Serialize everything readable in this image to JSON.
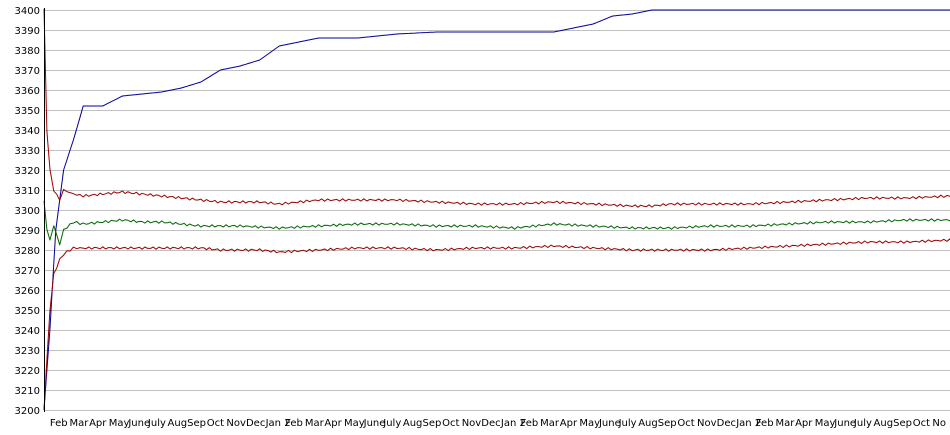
{
  "chart_data": {
    "type": "line",
    "title": "",
    "xlabel": "",
    "ylabel": "",
    "ylim": [
      3200,
      3400
    ],
    "yticks": [
      3200,
      3210,
      3220,
      3230,
      3240,
      3250,
      3260,
      3270,
      3280,
      3290,
      3300,
      3310,
      3320,
      3330,
      3340,
      3350,
      3360,
      3370,
      3380,
      3390,
      3400
    ],
    "grid": "horizontal",
    "legend": "none",
    "x_tick_labels": [
      "Feb",
      "Mar",
      "Apr",
      "May",
      "June",
      "July",
      "Aug",
      "Sep",
      "Oct",
      "Nov",
      "Dec",
      "Jan 2",
      "Feb",
      "Mar",
      "Apr",
      "May",
      "June",
      "July",
      "Aug",
      "Sep",
      "Oct",
      "Nov",
      "Dec",
      "Jan 2",
      "Feb",
      "Mar",
      "Apr",
      "May",
      "June",
      "July",
      "Aug",
      "Sep",
      "Oct",
      "Nov",
      "Dec",
      "Jan 2",
      "Feb",
      "Mar",
      "Apr",
      "May",
      "June",
      "July",
      "Aug",
      "Sep",
      "Oct",
      "No"
    ],
    "x_tick_positions": [
      0.3,
      1.3,
      2.3,
      3.3,
      4.3,
      5.3,
      6.3,
      7.3,
      8.3,
      9.3,
      10.3,
      11.3,
      12.3,
      13.3,
      14.3,
      15.3,
      16.3,
      17.3,
      18.3,
      19.3,
      20.3,
      21.3,
      22.3,
      23.3,
      24.3,
      25.3,
      26.3,
      27.3,
      28.3,
      29.3,
      30.3,
      31.3,
      32.3,
      33.3,
      34.3,
      35.3,
      36.3,
      37.3,
      38.3,
      39.3,
      40.3,
      41.3,
      42.3,
      43.3,
      44.3,
      45.3
    ],
    "x_range": [
      0,
      46.2
    ],
    "series": [
      {
        "color": "#000099",
        "x": [
          0,
          0.3,
          0.6,
          1.0,
          1.5,
          2.0,
          3.0,
          4.0,
          5.0,
          6.0,
          7.0,
          8.0,
          9.0,
          10.0,
          11.0,
          12.0,
          13.0,
          14.0,
          15.0,
          16.0,
          17.0,
          18.0,
          20.0,
          22.0,
          24.0,
          26.0,
          27.0,
          28.0,
          29.0,
          30.0,
          31.0,
          32.0,
          34.0,
          36.0,
          38.0,
          40.0,
          42.0,
          44.0,
          46.2
        ],
        "y": [
          3200,
          3240,
          3290,
          3320,
          3335,
          3352,
          3352,
          3357,
          3358,
          3359,
          3361,
          3364,
          3370,
          3372,
          3375,
          3382,
          3384,
          3386,
          3386,
          3386,
          3387,
          3388,
          3389,
          3389,
          3389,
          3389,
          3391,
          3393,
          3397,
          3398,
          3400,
          3400,
          3400,
          3400,
          3400,
          3400,
          3400,
          3400,
          3400
        ]
      },
      {
        "color": "#990000",
        "x": [
          0,
          0.15,
          0.3,
          0.5,
          0.8,
          1.0,
          1.5,
          2.0,
          3.0,
          4.0,
          5.0,
          6.0,
          7.0,
          8.0,
          9.0,
          10.0,
          11.0,
          12.0,
          14.0,
          16.0,
          18.0,
          20.0,
          22.0,
          24.0,
          26.0,
          28.0,
          30.0,
          31.0,
          32.0,
          34.0,
          36.0,
          38.0,
          40.0,
          42.0,
          44.0,
          46.2
        ],
        "y": [
          3400,
          3340,
          3320,
          3310,
          3305,
          3310,
          3308,
          3307,
          3308,
          3309,
          3308,
          3307,
          3306,
          3305,
          3304,
          3304,
          3304,
          3303,
          3305,
          3305,
          3305,
          3304,
          3303,
          3303,
          3304,
          3303,
          3302,
          3302,
          3303,
          3303,
          3303,
          3304,
          3305,
          3306,
          3306,
          3307
        ]
      },
      {
        "color": "#006600",
        "x": [
          0,
          0.15,
          0.3,
          0.5,
          0.8,
          1.0,
          1.5,
          2.0,
          3.0,
          4.0,
          5.0,
          6.0,
          7.0,
          8.0,
          9.0,
          10.0,
          12.0,
          14.0,
          16.0,
          18.0,
          20.0,
          22.0,
          24.0,
          26.0,
          28.0,
          30.0,
          31.0,
          32.0,
          34.0,
          36.0,
          38.0,
          40.0,
          42.0,
          44.0,
          46.2
        ],
        "y": [
          3305,
          3290,
          3285,
          3292,
          3283,
          3290,
          3294,
          3293,
          3294,
          3295,
          3294,
          3294,
          3293,
          3292,
          3292,
          3292,
          3291,
          3292,
          3293,
          3293,
          3292,
          3292,
          3291,
          3293,
          3292,
          3291,
          3291,
          3291,
          3292,
          3292,
          3293,
          3294,
          3294,
          3295,
          3295
        ]
      },
      {
        "color": "#990000",
        "x": [
          0,
          0.15,
          0.3,
          0.5,
          0.8,
          1.0,
          1.5,
          2.0,
          3.0,
          4.0,
          5.0,
          6.0,
          7.0,
          8.0,
          9.0,
          10.0,
          11.0,
          12.0,
          14.0,
          16.0,
          18.0,
          20.0,
          22.0,
          24.0,
          26.0,
          28.0,
          30.0,
          31.0,
          32.0,
          34.0,
          36.0,
          38.0,
          40.0,
          42.0,
          44.0,
          46.2
        ],
        "y": [
          3200,
          3225,
          3250,
          3268,
          3275,
          3278,
          3281,
          3281,
          3281,
          3281,
          3281,
          3281,
          3281,
          3281,
          3280,
          3280,
          3280,
          3279,
          3280,
          3281,
          3281,
          3280,
          3281,
          3281,
          3282,
          3281,
          3280,
          3280,
          3280,
          3280,
          3281,
          3282,
          3283,
          3284,
          3284,
          3285
        ]
      }
    ]
  }
}
